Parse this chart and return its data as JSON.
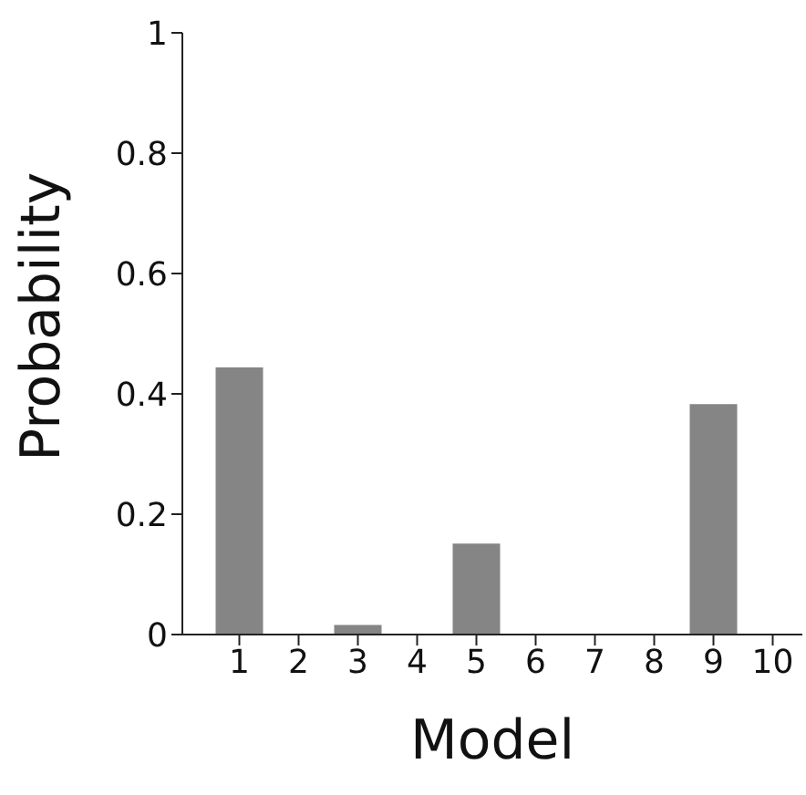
{
  "chart_data": {
    "type": "bar",
    "xlabel": "Model",
    "ylabel": "Probability",
    "categories": [
      "1",
      "2",
      "3",
      "4",
      "5",
      "6",
      "7",
      "8",
      "9",
      "10"
    ],
    "values": [
      0.444,
      0,
      0.016,
      0,
      0.151,
      0,
      0,
      0,
      0.383,
      0
    ],
    "color": "#858585",
    "ylim": [
      0,
      1
    ],
    "yticks": [
      0,
      0.2,
      0.4,
      0.6,
      0.8,
      1
    ],
    "grid": false,
    "legend": false
  }
}
